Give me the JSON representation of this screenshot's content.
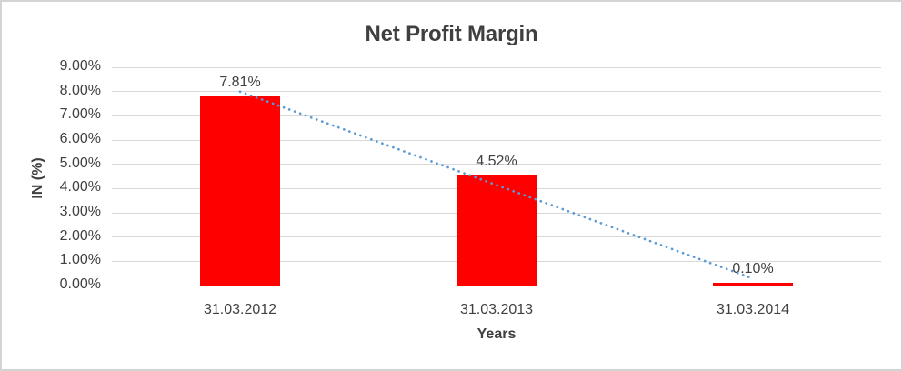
{
  "chart_data": {
    "type": "bar",
    "title": "Net Profit Margin",
    "xlabel": "Years",
    "ylabel": "IN (%)",
    "categories": [
      "31.03.2012",
      "31.03.2013",
      "31.03.2014"
    ],
    "values": [
      7.81,
      4.52,
      0.1
    ],
    "data_labels": [
      "7.81%",
      "4.52%",
      "0.10%"
    ],
    "y_tick_labels": [
      "0.00%",
      "1.00%",
      "2.00%",
      "3.00%",
      "4.00%",
      "5.00%",
      "6.00%",
      "7.00%",
      "8.00%",
      "9.00%"
    ],
    "ylim": [
      0,
      9
    ],
    "y_tick_step": 1,
    "grid": true,
    "legend": false,
    "bar_color": "#ff0000",
    "gridline_color": "#d9d9d9",
    "axis_line_color": "#bfbfbf",
    "text_color": "#404040",
    "trendline": {
      "type": "linear",
      "style": "dotted",
      "color": "#5b9bd5"
    }
  }
}
